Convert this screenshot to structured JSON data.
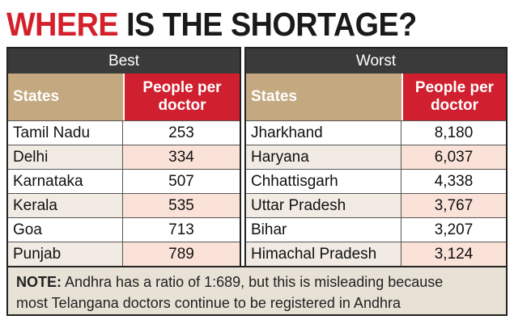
{
  "title": {
    "part1": "WHERE",
    "part2": "IS THE SHORTAGE?"
  },
  "chart_data": {
    "type": "table",
    "tables": [
      {
        "name": "Best",
        "columns": [
          "States",
          "People per doctor"
        ],
        "rows": [
          [
            "Tamil Nadu",
            "253"
          ],
          [
            "Delhi",
            "334"
          ],
          [
            "Karnataka",
            "507"
          ],
          [
            "Kerala",
            "535"
          ],
          [
            "Goa",
            "713"
          ],
          [
            "Punjab",
            "789"
          ]
        ]
      },
      {
        "name": "Worst",
        "columns": [
          "States",
          "People per doctor"
        ],
        "rows": [
          [
            "Jharkhand",
            "8,180"
          ],
          [
            "Haryana",
            "6,037"
          ],
          [
            "Chhattisgarh",
            "4,338"
          ],
          [
            "Uttar Pradesh",
            "3,767"
          ],
          [
            "Bihar",
            "3,207"
          ],
          [
            "Himachal Pradesh",
            "3,124"
          ]
        ]
      }
    ]
  },
  "note": {
    "label": "NOTE:",
    "line1": "Andhra has a ratio of 1:689, but this is misleading because",
    "line2": "most Telangana doctors continue to be registered in Andhra"
  },
  "colors": {
    "title_red": "#d4202a",
    "header_dark": "#3a3a3a",
    "states_header": "#c4a880",
    "value_header": "#d01f2e",
    "alt_row_state": "#f1ebe3",
    "alt_row_value": "#fbe2d8",
    "note_bg": "#e8e1d6"
  }
}
